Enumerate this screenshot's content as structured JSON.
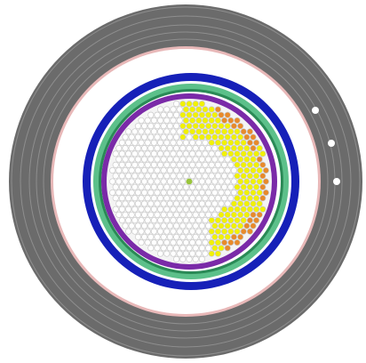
{
  "diagram": {
    "type": "reactor-core-cross-section",
    "colors": {
      "background": "#ffffff",
      "outer_shield": "#6b6b6b",
      "outer_shield_lines": "#8e8e8e",
      "pink_liner": "#e8b8b8",
      "gap": "#ffffff",
      "blue_vessel": "#1620b8",
      "green_band": "#5cc08a",
      "green_band_inner_line": "#2a8a56",
      "purple_barrel": "#7a2aa8",
      "core_fill": "#f4f4f4",
      "fuel_cell_stroke": "#c9c9c9",
      "fuel_cell_white": "#ffffff",
      "fuel_cell_yellow": "#f2f200",
      "fuel_cell_orange": "#e88a2a",
      "fuel_cell_center_green": "#9ac63b",
      "port_marker": "#ffffff"
    },
    "regions": [
      {
        "name": "outer-shield"
      },
      {
        "name": "pink-liner"
      },
      {
        "name": "blue-vessel"
      },
      {
        "name": "green-band"
      },
      {
        "name": "purple-barrel"
      },
      {
        "name": "fuel-core"
      }
    ],
    "port_markers_count": 3,
    "core_highlight": {
      "shape": "crescent",
      "side": "right",
      "fill_levels": [
        "yellow",
        "orange"
      ]
    }
  }
}
